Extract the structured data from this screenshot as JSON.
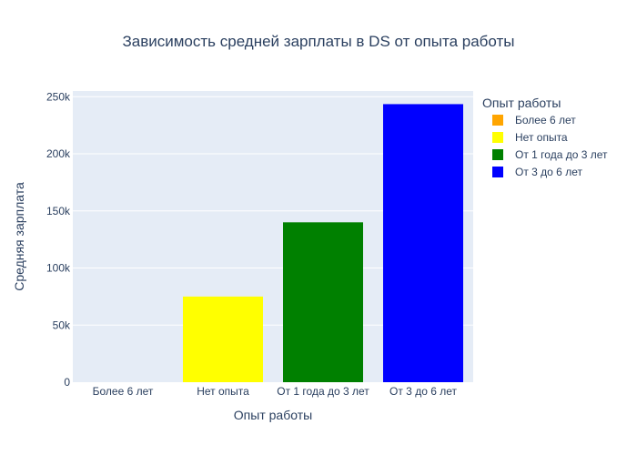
{
  "chart_data": {
    "type": "bar",
    "title": "Зависимость средней зарплаты в DS от опыта работы",
    "xlabel": "Опыт работы",
    "ylabel": "Средняя зарплата",
    "categories": [
      "Более 6 лет",
      "Нет опыта",
      "От 1 года до 3 лет",
      "От 3 до 6 лет"
    ],
    "series": [
      {
        "name": "Более 6 лет",
        "category": "Более 6 лет",
        "value": 0,
        "color": "#ffa500"
      },
      {
        "name": "Нет опыта",
        "category": "Нет опыта",
        "value": 75000,
        "color": "#ffff00"
      },
      {
        "name": "От 1 года до 3 лет",
        "category": "От 1 года до 3 лет",
        "value": 140000,
        "color": "#008000"
      },
      {
        "name": "От 3 до 6 лет",
        "category": "От 3 до 6 лет",
        "value": 243500,
        "color": "#0000ff"
      }
    ],
    "ylim": [
      0,
      255000
    ],
    "yticks": [
      {
        "value": 0,
        "label": "0"
      },
      {
        "value": 50000,
        "label": "50k"
      },
      {
        "value": 100000,
        "label": "100k"
      },
      {
        "value": 150000,
        "label": "150k"
      },
      {
        "value": 200000,
        "label": "200k"
      },
      {
        "value": 250000,
        "label": "250k"
      }
    ],
    "grid": true,
    "legend": {
      "title": "Опыт работы",
      "placement": "top-right"
    },
    "colors": {
      "plot_bg": "#e5ecf6",
      "grid": "#ffffff",
      "text": "#2a3f5f"
    }
  }
}
